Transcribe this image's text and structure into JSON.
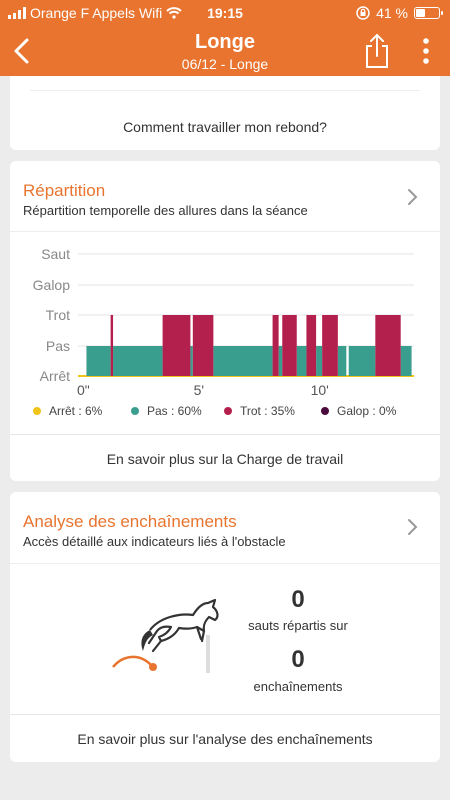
{
  "status": {
    "carrier": "Orange F Appels Wifi",
    "time": "19:15",
    "battery": "41 %",
    "battery_level": 0.41
  },
  "nav": {
    "title": "Longe",
    "subtitle": "06/12 - Longe",
    "icons": [
      "back-icon",
      "share-icon",
      "more-icon"
    ]
  },
  "top_card": {
    "link": "Comment travailler mon rebond?"
  },
  "repartition": {
    "title": "Répartition",
    "subtitle": "Répartition temporelle des allures dans la séance",
    "link": "En savoir plus sur la Charge de travail"
  },
  "chart_data": {
    "type": "bar",
    "y_categories": [
      "Arrêt",
      "Pas",
      "Trot",
      "Galop",
      "Saut"
    ],
    "x_ticks": [
      "0\"",
      "5'",
      "10'"
    ],
    "x_range_minutes": [
      0,
      13.9
    ],
    "segments": [
      {
        "gait": "Pas",
        "start": 0.35,
        "end": 1.35
      },
      {
        "gait": "Trot",
        "start": 1.35,
        "end": 1.45
      },
      {
        "gait": "Pas",
        "start": 1.45,
        "end": 3.5
      },
      {
        "gait": "Trot",
        "start": 3.5,
        "end": 4.65
      },
      {
        "gait": "Pas",
        "start": 4.65,
        "end": 4.75
      },
      {
        "gait": "Trot",
        "start": 4.75,
        "end": 5.6
      },
      {
        "gait": "Pas",
        "start": 5.6,
        "end": 8.05
      },
      {
        "gait": "Trot",
        "start": 8.05,
        "end": 8.3
      },
      {
        "gait": "Pas",
        "start": 8.3,
        "end": 8.45
      },
      {
        "gait": "Trot",
        "start": 8.45,
        "end": 9.05
      },
      {
        "gait": "Pas",
        "start": 9.05,
        "end": 9.45
      },
      {
        "gait": "Trot",
        "start": 9.45,
        "end": 9.85
      },
      {
        "gait": "Pas",
        "start": 9.85,
        "end": 10.1
      },
      {
        "gait": "Trot",
        "start": 10.1,
        "end": 10.75
      },
      {
        "gait": "Pas",
        "start": 10.75,
        "end": 11.1
      },
      {
        "gait": "Pas",
        "start": 11.2,
        "end": 12.3
      },
      {
        "gait": "Trot",
        "start": 12.3,
        "end": 13.35
      },
      {
        "gait": "Pas",
        "start": 13.35,
        "end": 13.8
      }
    ],
    "legend": [
      {
        "label": "Arrêt : 6%",
        "color": "#f0c419"
      },
      {
        "label": "Pas : 60%",
        "color": "#3a9e8f"
      },
      {
        "label": "Trot : 35%",
        "color": "#b3204d"
      },
      {
        "label": "Galop : 0%",
        "color": "#4a0a3c"
      }
    ]
  },
  "enchainements": {
    "title": "Analyse des enchaînements",
    "subtitle": "Accès détaillé aux indicateurs liés à l'obstacle",
    "sauts_value": "0",
    "sauts_label": "sauts répartis sur",
    "ench_value": "0",
    "ench_label": "enchaînements",
    "link": "En savoir plus sur l'analyse des enchaînements"
  },
  "colors": {
    "accent": "#e8742f",
    "pas": "#3a9e8f",
    "trot": "#b3204d",
    "arret": "#f0c419"
  }
}
